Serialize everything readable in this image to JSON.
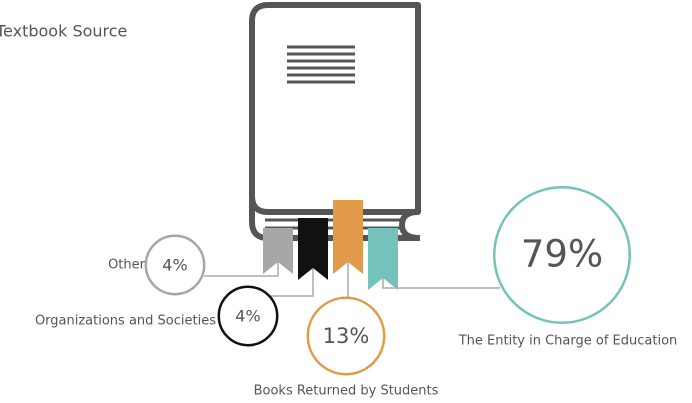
{
  "chart_data": {
    "type": "bubble",
    "title": "Textbook Source",
    "categories": [
      "Other",
      "Organizations and Societies",
      "Books Returned by Students",
      "The Entity in Charge of Education"
    ],
    "values": [
      4,
      4,
      13,
      79
    ],
    "value_labels": [
      "4%",
      "4%",
      "13%",
      "79%"
    ],
    "colors": [
      "#a7a7a9",
      "#111111",
      "#e09a4a",
      "#74c2ba"
    ]
  }
}
